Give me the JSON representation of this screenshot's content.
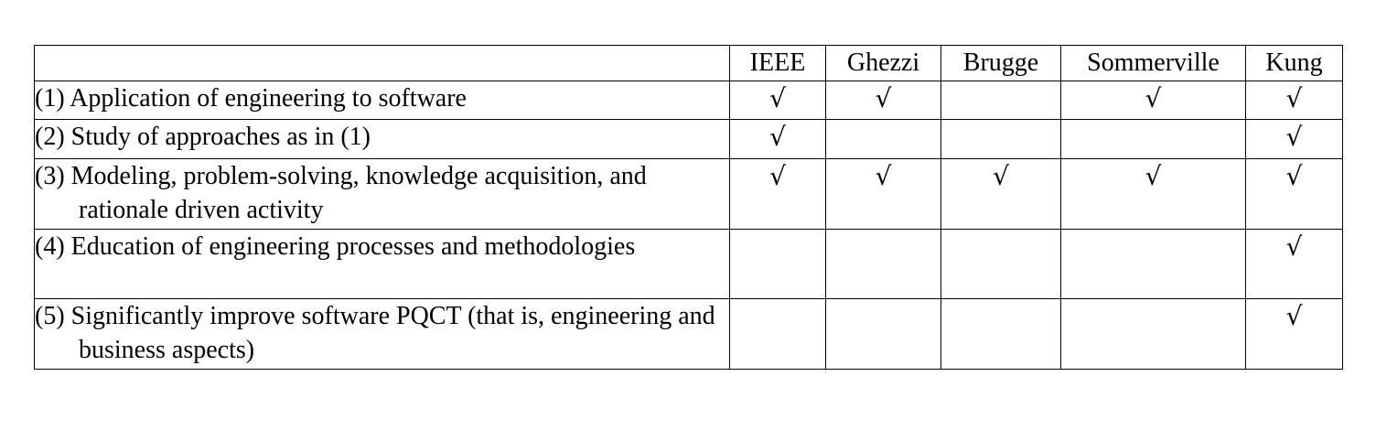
{
  "columns": [
    "",
    "IEEE",
    "Ghezzi",
    "Brugge",
    "Sommerville",
    "Kung"
  ],
  "check_mark": "√",
  "rows": [
    {
      "label": "(1) Application of engineering to software",
      "marks": [
        true,
        true,
        false,
        true,
        true
      ]
    },
    {
      "label": "(2) Study of approaches as in (1)",
      "marks": [
        true,
        false,
        false,
        false,
        true
      ]
    },
    {
      "label": "(3) Modeling, problem-solving, knowledge acquisition, and rationale driven activity",
      "marks": [
        true,
        true,
        true,
        true,
        true
      ]
    },
    {
      "label": "(4) Education of engineering processes and methodologies",
      "marks": [
        false,
        false,
        false,
        false,
        true
      ]
    },
    {
      "label": "(5) Significantly improve software PQCT (that is, engineering and business aspects)",
      "marks": [
        false,
        false,
        false,
        false,
        true
      ]
    }
  ]
}
